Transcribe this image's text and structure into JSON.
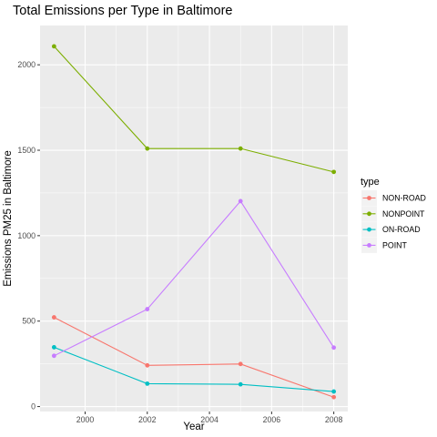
{
  "chart_data": {
    "type": "line",
    "title": "Total Emissions per Type in Baltimore",
    "xlabel": "Year",
    "ylabel": "Emissions PM25 in Baltimore",
    "x": [
      1999,
      2002,
      2005,
      2008
    ],
    "xlim": [
      1998.55,
      2008.45
    ],
    "ylim": [
      -29,
      2230
    ],
    "xticks": [
      2000,
      2002,
      2004,
      2006,
      2008
    ],
    "yticks": [
      0,
      500,
      1000,
      1500,
      2000
    ],
    "grid": true,
    "legend_title": "type",
    "legend_position": "right",
    "series": [
      {
        "name": "NON-ROAD",
        "color": "#F8766D",
        "values": [
          522,
          241,
          249,
          55
        ]
      },
      {
        "name": "NONPOINT",
        "color": "#7CAE00",
        "values": [
          2108,
          1510,
          1510,
          1373
        ]
      },
      {
        "name": "ON-ROAD",
        "color": "#00BFC4",
        "values": [
          347,
          134,
          130,
          88
        ]
      },
      {
        "name": "POINT",
        "color": "#C77CFF",
        "values": [
          297,
          570,
          1202,
          345
        ]
      }
    ]
  }
}
